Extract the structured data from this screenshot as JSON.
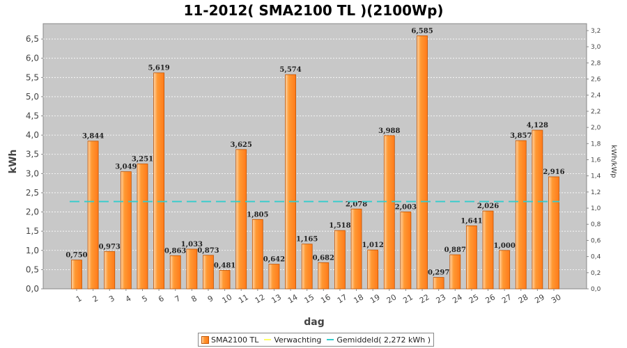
{
  "chart_data": {
    "type": "bar",
    "title": "11-2012( SMA2100 TL )(2100Wp)",
    "xlabel": "dag",
    "ylabel": "kWh",
    "ylabel_right": "kWh/kWp",
    "ylim": [
      0,
      6.9
    ],
    "ylim_right": [
      0,
      3.286
    ],
    "y_ticks": [
      "0,0",
      "0,5",
      "1,0",
      "1,5",
      "2,0",
      "2,5",
      "3,0",
      "3,5",
      "4,0",
      "4,5",
      "5,0",
      "5,5",
      "6,0",
      "6,5"
    ],
    "y_right_ticks": [
      "0,0",
      "0,2",
      "0,4",
      "0,6",
      "0,8",
      "1,0",
      "1,2",
      "1,4",
      "1,6",
      "1,8",
      "2,0",
      "2,2",
      "2,4",
      "2,6",
      "2,8",
      "3,0",
      "3,2"
    ],
    "categories": [
      "1",
      "2",
      "3",
      "4",
      "5",
      "6",
      "7",
      "8",
      "9",
      "10",
      "11",
      "12",
      "13",
      "14",
      "15",
      "16",
      "17",
      "18",
      "19",
      "20",
      "21",
      "22",
      "23",
      "24",
      "25",
      "26",
      "27",
      "28",
      "29",
      "30"
    ],
    "series": [
      {
        "name": "SMA2100 TL",
        "values": [
          0.75,
          3.844,
          0.973,
          3.049,
          3.251,
          5.619,
          0.863,
          1.033,
          0.873,
          0.481,
          3.625,
          1.805,
          0.642,
          5.574,
          1.165,
          0.682,
          1.518,
          2.078,
          1.012,
          3.988,
          2.003,
          6.585,
          0.297,
          0.887,
          1.641,
          2.026,
          1.0,
          3.857,
          4.128,
          2.916
        ],
        "labels": [
          "0,750",
          "3,844",
          "0,973",
          "3,049",
          "3,251",
          "5,619",
          "0,863",
          "1,033",
          "0,873",
          "0,481",
          "3,625",
          "1,805",
          "0,642",
          "5,574",
          "1,165",
          "0,682",
          "1,518",
          "2,078",
          "1,012",
          "3,988",
          "2,003",
          "6,585",
          "0,297",
          "0,887",
          "1,641",
          "2,026",
          "1,000",
          "3,857",
          "4,128",
          "2,916"
        ],
        "color": "#ff9933"
      }
    ],
    "average": 2.272,
    "average_color": "#33cccc",
    "expected_color": "#ffff66",
    "grid": true,
    "plot_background": "#c8c8c8",
    "legend_position": "bottom-center",
    "legend": [
      "SMA2100 TL",
      "Verwachting",
      "Gemiddeld( 2,272 kWh )"
    ]
  }
}
